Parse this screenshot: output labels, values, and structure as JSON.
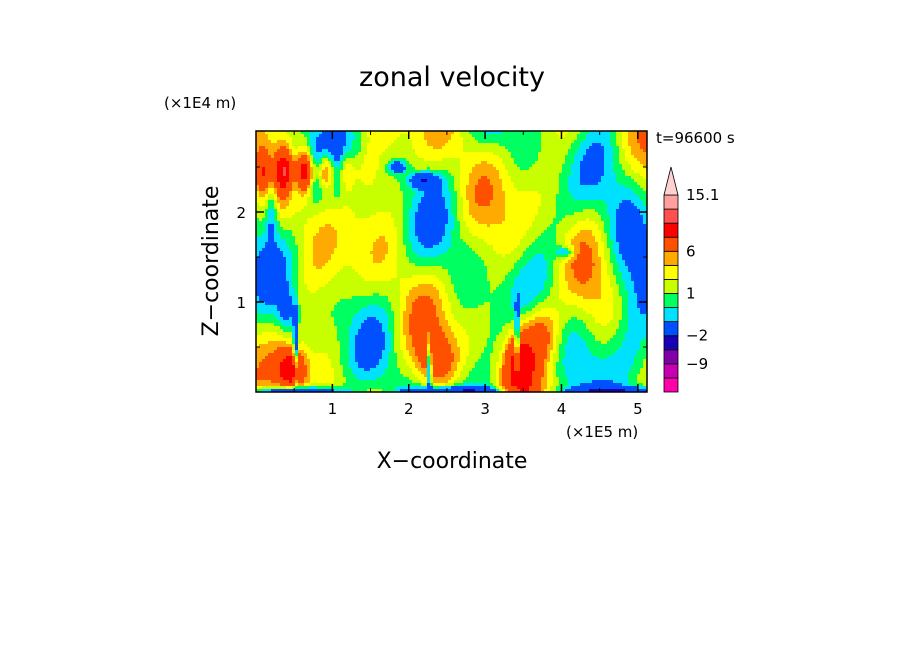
{
  "chart_data": {
    "type": "heatmap",
    "title": "zonal velocity",
    "xlabel": "X−coordinate",
    "ylabel": "Z−coordinate",
    "x_unit": "(×1E5 m)",
    "y_unit": "(×1E4 m)",
    "time_label": "t=96600 s",
    "xlim": [
      0,
      5.12
    ],
    "ylim": [
      0,
      2.9
    ],
    "xticks": [
      "1",
      "2",
      "3",
      "4",
      "5"
    ],
    "yticks": [
      "1",
      "2"
    ],
    "xtick_values": [
      1,
      2,
      3,
      4,
      5
    ],
    "ytick_values": [
      1,
      2
    ],
    "colorbar": {
      "levels": [
        -15.1,
        -12,
        -9,
        -6,
        -2,
        -1,
        0,
        1,
        2,
        3,
        6,
        9,
        12,
        15.1
      ],
      "colors": [
        "#ff00aa",
        "#c800b4",
        "#8000aa",
        "#1a00b4",
        "#0050ff",
        "#00e1ff",
        "#00ff60",
        "#c8ff00",
        "#ffff00",
        "#ffaa00",
        "#ff5000",
        "#ff0000",
        "#ff5050",
        "#ffa0a0",
        "#ffd2d2"
      ],
      "tick_labels": [
        "15.1",
        "6",
        "1",
        "−2",
        "−9"
      ],
      "tick_values": [
        15.1,
        6,
        1,
        -2,
        -9
      ]
    }
  }
}
